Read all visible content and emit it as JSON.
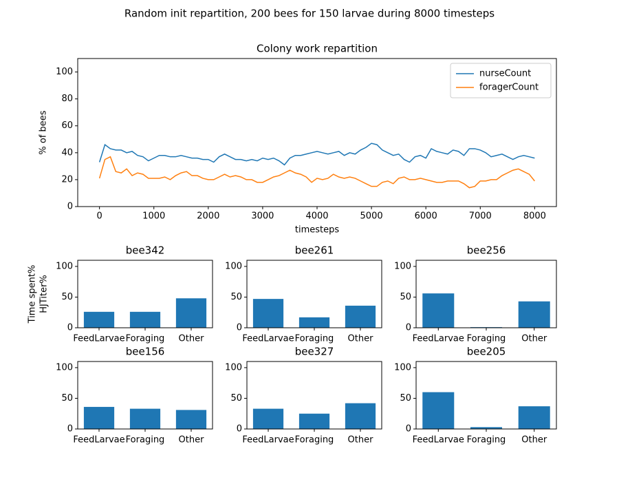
{
  "title": "Random init repartition, 200 bees for 150 larvae during 8000 timesteps",
  "chart_data": [
    {
      "type": "line",
      "title": "Colony work repartition",
      "xlabel": "timesteps",
      "ylabel": "% of bees",
      "x": [
        0,
        100,
        200,
        300,
        400,
        500,
        600,
        700,
        800,
        900,
        1000,
        1100,
        1200,
        1300,
        1400,
        1500,
        1600,
        1700,
        1800,
        1900,
        2000,
        2100,
        2200,
        2300,
        2400,
        2500,
        2600,
        2700,
        2800,
        2900,
        3000,
        3100,
        3200,
        3300,
        3400,
        3500,
        3600,
        3700,
        3800,
        3900,
        4000,
        4100,
        4200,
        4300,
        4400,
        4500,
        4600,
        4700,
        4800,
        4900,
        5000,
        5100,
        5200,
        5300,
        5400,
        5500,
        5600,
        5700,
        5800,
        5900,
        6000,
        6100,
        6200,
        6300,
        6400,
        6500,
        6600,
        6700,
        6800,
        6900,
        7000,
        7100,
        7200,
        7300,
        7400,
        7500,
        7600,
        7700,
        7800,
        7900,
        8000
      ],
      "series": [
        {
          "name": "nurseCount",
          "color": "#1f77b4",
          "values": [
            33,
            46,
            43,
            42,
            42,
            40,
            41,
            38,
            37,
            34,
            36,
            38,
            38,
            37,
            37,
            38,
            37,
            36,
            36,
            35,
            35,
            33,
            37,
            39,
            37,
            35,
            35,
            34,
            35,
            34,
            36,
            35,
            36,
            34,
            31,
            36,
            38,
            38,
            39,
            40,
            41,
            40,
            39,
            40,
            41,
            38,
            40,
            39,
            42,
            44,
            47,
            46,
            42,
            40,
            38,
            39,
            35,
            33,
            37,
            38,
            36,
            43,
            41,
            40,
            39,
            42,
            41,
            38,
            43,
            43,
            42,
            40,
            37,
            38,
            39,
            37,
            35,
            37,
            38,
            37,
            36
          ]
        },
        {
          "name": "foragerCount",
          "color": "#ff7f0e",
          "values": [
            21,
            35,
            37,
            26,
            25,
            28,
            23,
            25,
            24,
            21,
            21,
            21,
            22,
            20,
            23,
            25,
            26,
            23,
            23,
            21,
            20,
            20,
            22,
            24,
            22,
            23,
            22,
            20,
            20,
            18,
            18,
            20,
            22,
            23,
            25,
            27,
            25,
            24,
            22,
            18,
            21,
            20,
            21,
            24,
            22,
            21,
            22,
            21,
            19,
            17,
            15,
            15,
            18,
            19,
            17,
            21,
            22,
            20,
            20,
            21,
            20,
            19,
            18,
            18,
            19,
            19,
            19,
            17,
            14,
            15,
            19,
            19,
            20,
            20,
            23,
            25,
            27,
            28,
            26,
            24,
            19
          ]
        }
      ],
      "xlim": [
        -400,
        8400
      ],
      "ylim": [
        0,
        110
      ],
      "xticks": [
        0,
        1000,
        2000,
        3000,
        4000,
        5000,
        6000,
        7000,
        8000
      ],
      "yticks": [
        0,
        20,
        40,
        60,
        80,
        100
      ],
      "legend": "upper right"
    },
    {
      "type": "bar",
      "title": "bee342",
      "ylabel": [
        "Time spent%",
        "HJTiter%"
      ],
      "categories": [
        "FeedLarvae",
        "Foraging",
        "Other"
      ],
      "values": [
        26,
        26,
        48
      ],
      "color": "#1f77b4",
      "ylim": [
        0,
        110
      ],
      "yticks": [
        0,
        50,
        100
      ]
    },
    {
      "type": "bar",
      "title": "bee261",
      "categories": [
        "FeedLarvae",
        "Foraging",
        "Other"
      ],
      "values": [
        47,
        17,
        36
      ],
      "color": "#1f77b4",
      "ylim": [
        0,
        110
      ],
      "yticks": [
        0,
        50,
        100
      ]
    },
    {
      "type": "bar",
      "title": "bee256",
      "categories": [
        "FeedLarvae",
        "Foraging",
        "Other"
      ],
      "values": [
        56,
        1,
        43
      ],
      "color": "#1f77b4",
      "ylim": [
        0,
        110
      ],
      "yticks": [
        0,
        50,
        100
      ]
    },
    {
      "type": "bar",
      "title": "bee156",
      "categories": [
        "FeedLarvae",
        "Foraging",
        "Other"
      ],
      "values": [
        36,
        33,
        31
      ],
      "color": "#1f77b4",
      "ylim": [
        0,
        110
      ],
      "yticks": [
        0,
        50,
        100
      ]
    },
    {
      "type": "bar",
      "title": "bee327",
      "categories": [
        "FeedLarvae",
        "Foraging",
        "Other"
      ],
      "values": [
        33,
        25,
        42
      ],
      "color": "#1f77b4",
      "ylim": [
        0,
        110
      ],
      "yticks": [
        0,
        50,
        100
      ]
    },
    {
      "type": "bar",
      "title": "bee205",
      "categories": [
        "FeedLarvae",
        "Foraging",
        "Other"
      ],
      "values": [
        60,
        3,
        37
      ],
      "color": "#1f77b4",
      "ylim": [
        0,
        110
      ],
      "yticks": [
        0,
        50,
        100
      ]
    }
  ]
}
